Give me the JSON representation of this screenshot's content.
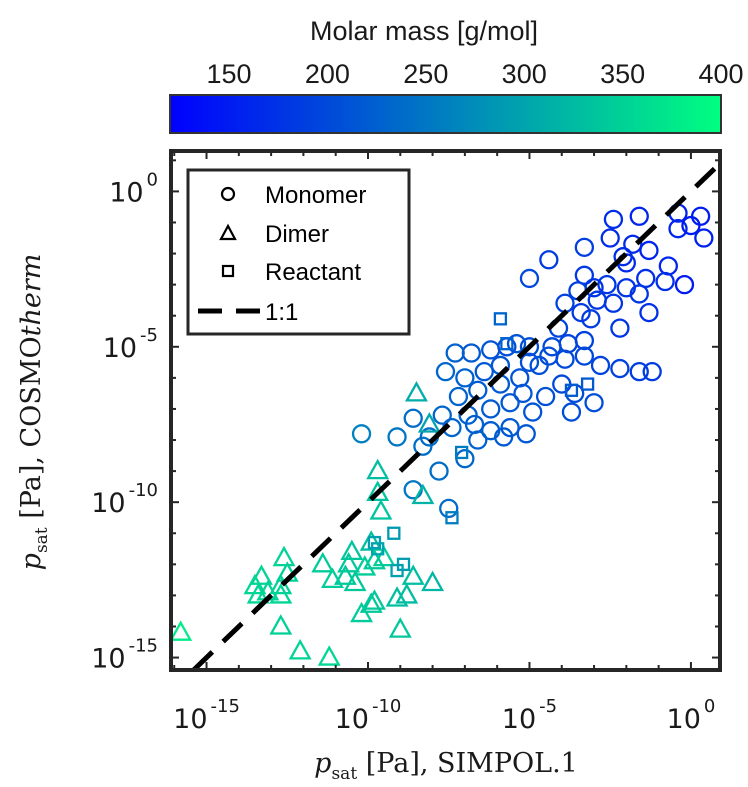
{
  "colorbar": {
    "title": "Molar mass [g/mol]",
    "ticks": [
      150,
      200,
      250,
      300,
      350,
      400
    ],
    "tick_labels": [
      "150",
      "200",
      "250",
      "300",
      "350",
      "400"
    ],
    "range": [
      120,
      400
    ],
    "color_low": "#0000ff",
    "color_high": "#00ff80"
  },
  "chart_data": {
    "type": "scatter",
    "xlabel": {
      "main": "p",
      "sub": "sat",
      "rest": " [Pa], SIMPOL.1"
    },
    "ylabel": {
      "main": "p",
      "sub": "sat",
      "rest_pre": " [Pa], COSMO",
      "italic": "therm"
    },
    "xscale": "log",
    "yscale": "log",
    "xlim_exp": [
      -16.1,
      0.9
    ],
    "ylim_exp": [
      -15.4,
      1.3
    ],
    "x_ticks": [
      {
        "base": "10",
        "exp": "-15",
        "value_exp": -15
      },
      {
        "base": "10",
        "exp": "-10",
        "value_exp": -10
      },
      {
        "base": "10",
        "exp": "-5",
        "value_exp": -5
      },
      {
        "base": "10",
        "exp": "0",
        "value_exp": 0
      }
    ],
    "y_ticks": [
      {
        "base": "10",
        "exp": "0",
        "value_exp": 0
      },
      {
        "base": "10",
        "exp": "-5",
        "value_exp": -5
      },
      {
        "base": "10",
        "exp": "-10",
        "value_exp": -10
      },
      {
        "base": "10",
        "exp": "-15",
        "value_exp": -15
      }
    ],
    "legend": {
      "position": "top-left",
      "entries": [
        {
          "label": "Monomer",
          "marker": "circle"
        },
        {
          "label": "Dimer",
          "marker": "triangle"
        },
        {
          "label": "Reactant",
          "marker": "square"
        },
        {
          "label": "1:1",
          "marker": "dashed-line"
        }
      ]
    },
    "reference_line": {
      "label": "1:1",
      "style": "dashed",
      "color": "#000000"
    },
    "series": [
      {
        "marker": "circle",
        "points": [
          [
            -0.4,
            -0.7,
            158
          ],
          [
            0.3,
            -0.8,
            152
          ],
          [
            -1.6,
            -0.8,
            160
          ],
          [
            -1.8,
            -1.7,
            165
          ],
          [
            -0.4,
            -1.2,
            162
          ],
          [
            0.0,
            -1.1,
            150
          ],
          [
            0.4,
            -1.5,
            155
          ],
          [
            -2.4,
            -0.9,
            170
          ],
          [
            -2.5,
            -1.5,
            168
          ],
          [
            -1.3,
            -1.9,
            160
          ],
          [
            -2.0,
            -2.3,
            166
          ],
          [
            -0.7,
            -2.4,
            162
          ],
          [
            -2.1,
            -2.1,
            171
          ],
          [
            -3.3,
            -1.8,
            188
          ],
          [
            -4.4,
            -2.2,
            185
          ],
          [
            -5.0,
            -2.8,
            200
          ],
          [
            -0.8,
            -2.9,
            170
          ],
          [
            -1.4,
            -2.8,
            172
          ],
          [
            -2.6,
            -3.0,
            180
          ],
          [
            -0.2,
            -3.0,
            148
          ],
          [
            -3.3,
            -2.7,
            182
          ],
          [
            -3.0,
            -3.1,
            178
          ],
          [
            -2.0,
            -3.1,
            175
          ],
          [
            -2.4,
            -3.6,
            177
          ],
          [
            -3.5,
            -3.2,
            190
          ],
          [
            -1.6,
            -3.3,
            178
          ],
          [
            -2.9,
            -3.5,
            182
          ],
          [
            -3.9,
            -3.6,
            192
          ],
          [
            -3.4,
            -3.9,
            185
          ],
          [
            -1.3,
            -3.9,
            173
          ],
          [
            -2.2,
            -4.4,
            178
          ],
          [
            -3.1,
            -4.1,
            186
          ],
          [
            -4.1,
            -4.4,
            196
          ],
          [
            -3.3,
            -4.8,
            190
          ],
          [
            -3.8,
            -4.9,
            194
          ],
          [
            -4.3,
            -5.0,
            200
          ],
          [
            -5.0,
            -5.0,
            205
          ],
          [
            -5.7,
            -5.0,
            208
          ],
          [
            -6.2,
            -5.1,
            212
          ],
          [
            -6.8,
            -5.2,
            218
          ],
          [
            -7.3,
            -5.2,
            225
          ],
          [
            -5.4,
            -4.9,
            210
          ],
          [
            -5.0,
            -5.5,
            208
          ],
          [
            -4.4,
            -5.3,
            204
          ],
          [
            -3.9,
            -5.4,
            200
          ],
          [
            -3.3,
            -5.3,
            198
          ],
          [
            -2.8,
            -5.6,
            195
          ],
          [
            -2.2,
            -5.7,
            190
          ],
          [
            -1.6,
            -5.8,
            186
          ],
          [
            -1.2,
            -5.8,
            184
          ],
          [
            -5.9,
            -5.6,
            214
          ],
          [
            -6.4,
            -5.8,
            218
          ],
          [
            -7.0,
            -6.0,
            228
          ],
          [
            -7.6,
            -5.8,
            232
          ],
          [
            -5.3,
            -6.0,
            210
          ],
          [
            -4.7,
            -5.6,
            205
          ],
          [
            -4.0,
            -6.2,
            200
          ],
          [
            -5.9,
            -6.2,
            218
          ],
          [
            -6.6,
            -6.4,
            222
          ],
          [
            -7.2,
            -6.6,
            228
          ],
          [
            -5.2,
            -6.5,
            214
          ],
          [
            -4.5,
            -6.6,
            208
          ],
          [
            -3.6,
            -6.5,
            205
          ],
          [
            -3.0,
            -6.8,
            204
          ],
          [
            -3.7,
            -7.1,
            206
          ],
          [
            -5.6,
            -6.8,
            216
          ],
          [
            -6.2,
            -7.0,
            220
          ],
          [
            -6.9,
            -7.2,
            226
          ],
          [
            -7.7,
            -7.2,
            232
          ],
          [
            -8.6,
            -7.3,
            240
          ],
          [
            -4.9,
            -7.1,
            212
          ],
          [
            -5.6,
            -7.6,
            218
          ],
          [
            -6.2,
            -7.7,
            222
          ],
          [
            -6.7,
            -7.5,
            224
          ],
          [
            -7.4,
            -7.6,
            230
          ],
          [
            -8.1,
            -7.9,
            238
          ],
          [
            -5.1,
            -7.8,
            214
          ],
          [
            -5.8,
            -7.9,
            220
          ],
          [
            -6.6,
            -8.0,
            226
          ],
          [
            -9.1,
            -7.9,
            248
          ],
          [
            -10.2,
            -7.8,
            262
          ],
          [
            -8.3,
            -8.2,
            240
          ],
          [
            -7.0,
            -8.6,
            234
          ],
          [
            -7.8,
            -9.0,
            240
          ],
          [
            -8.6,
            -9.6,
            250
          ],
          [
            -7.5,
            -10.2,
            238
          ]
        ]
      },
      {
        "marker": "triangle",
        "points": [
          [
            -8.5,
            -6.5,
            310
          ],
          [
            -8.1,
            -7.5,
            300
          ],
          [
            -9.7,
            -9.0,
            330
          ],
          [
            -9.7,
            -9.7,
            335
          ],
          [
            -9.6,
            -10.3,
            335
          ],
          [
            -8.3,
            -9.8,
            318
          ],
          [
            -9.9,
            -11.3,
            330
          ],
          [
            -10.5,
            -11.6,
            336
          ],
          [
            -9.5,
            -11.8,
            348
          ],
          [
            -9.8,
            -11.9,
            342
          ],
          [
            -10.6,
            -12.0,
            340
          ],
          [
            -10.1,
            -12.1,
            345
          ],
          [
            -10.7,
            -12.4,
            340
          ],
          [
            -11.4,
            -12.0,
            344
          ],
          [
            -11.1,
            -12.5,
            345
          ],
          [
            -12.6,
            -11.8,
            352
          ],
          [
            -12.5,
            -12.3,
            348
          ],
          [
            -13.3,
            -12.4,
            352
          ],
          [
            -13.5,
            -12.7,
            355
          ],
          [
            -12.7,
            -12.7,
            350
          ],
          [
            -13.1,
            -12.9,
            352
          ],
          [
            -13.4,
            -13.0,
            354
          ],
          [
            -12.7,
            -13.0,
            354
          ],
          [
            -10.4,
            -12.6,
            340
          ],
          [
            -8.6,
            -12.4,
            330
          ],
          [
            -8.0,
            -12.6,
            320
          ],
          [
            -9.9,
            -13.3,
            340
          ],
          [
            -10.2,
            -13.6,
            345
          ],
          [
            -9.8,
            -13.2,
            340
          ],
          [
            -9.1,
            -13.1,
            330
          ],
          [
            -8.8,
            -13.0,
            328
          ],
          [
            -12.7,
            -14.0,
            348
          ],
          [
            -9.0,
            -14.1,
            340
          ],
          [
            -12.1,
            -14.8,
            352
          ],
          [
            -15.8,
            -14.2,
            378
          ],
          [
            -11.2,
            -15.0,
            356
          ]
        ]
      },
      {
        "marker": "square",
        "points": [
          [
            -5.9,
            -4.1,
            230
          ],
          [
            -5.7,
            -4.9,
            226
          ],
          [
            -3.2,
            -6.2,
            218
          ],
          [
            -3.7,
            -6.4,
            220
          ],
          [
            -7.1,
            -8.4,
            255
          ],
          [
            -7.4,
            -10.5,
            258
          ],
          [
            -9.2,
            -11.0,
            288
          ],
          [
            -9.8,
            -11.3,
            295
          ],
          [
            -9.7,
            -11.5,
            300
          ],
          [
            -9.1,
            -12.2,
            296
          ],
          [
            -8.9,
            -12.0,
            292
          ]
        ]
      }
    ]
  }
}
